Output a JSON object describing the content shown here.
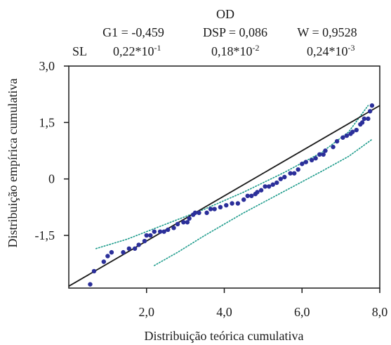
{
  "stats": {
    "title": "OD",
    "row1": [
      "G1 = -0,459",
      "DSP = 0,086",
      "W = 0,9528"
    ],
    "row2_label": "SL",
    "row2": [
      {
        "mantissa": "0,22*10",
        "exp": "-1"
      },
      {
        "mantissa": "0,18*10",
        "exp": "-2"
      },
      {
        "mantissa": "0,24*10",
        "exp": "-3"
      }
    ]
  },
  "chart_data": {
    "type": "scatter",
    "title": "",
    "xlabel": "Distribuição teórica cumulativa",
    "ylabel": "Distribuição empírica cumulativa",
    "xlim": [
      0,
      8
    ],
    "ylim": [
      -2.9,
      3.0
    ],
    "x_ticks": [
      {
        "value": 2,
        "label": "2,0"
      },
      {
        "value": 4,
        "label": "4,0"
      },
      {
        "value": 6,
        "label": "6,0"
      },
      {
        "value": 8,
        "label": "8,0"
      }
    ],
    "y_ticks": [
      {
        "value": 3.0,
        "label": "3,0"
      },
      {
        "value": 1.5,
        "label": "1,5"
      },
      {
        "value": 0,
        "label": "0"
      },
      {
        "value": -1.5,
        "label": "-1,5"
      }
    ],
    "colors": {
      "points": "#2b2f9a",
      "fit": "#1a1a1a",
      "envelope": "#1a9a8a"
    },
    "fit_line": [
      [
        0.0,
        -2.85
      ],
      [
        8.0,
        1.95
      ]
    ],
    "envelope_upper": [
      [
        0.7,
        -1.85
      ],
      [
        1.5,
        -1.6
      ],
      [
        2.5,
        -1.2
      ],
      [
        3.5,
        -0.8
      ],
      [
        4.5,
        -0.35
      ],
      [
        5.5,
        0.15
      ],
      [
        6.5,
        0.7
      ],
      [
        7.2,
        1.25
      ],
      [
        7.7,
        1.95
      ]
    ],
    "envelope_lower": [
      [
        2.2,
        -2.3
      ],
      [
        2.8,
        -1.95
      ],
      [
        3.5,
        -1.5
      ],
      [
        4.5,
        -0.9
      ],
      [
        5.5,
        -0.35
      ],
      [
        6.5,
        0.2
      ],
      [
        7.2,
        0.6
      ],
      [
        7.8,
        1.05
      ]
    ],
    "points": [
      [
        0.55,
        -2.8
      ],
      [
        0.65,
        -2.45
      ],
      [
        0.9,
        -2.2
      ],
      [
        1.0,
        -2.05
      ],
      [
        1.1,
        -1.95
      ],
      [
        1.4,
        -1.95
      ],
      [
        1.55,
        -1.85
      ],
      [
        1.7,
        -1.85
      ],
      [
        1.8,
        -1.75
      ],
      [
        1.95,
        -1.65
      ],
      [
        2.0,
        -1.5
      ],
      [
        2.1,
        -1.5
      ],
      [
        2.2,
        -1.4
      ],
      [
        2.35,
        -1.4
      ],
      [
        2.45,
        -1.4
      ],
      [
        2.55,
        -1.35
      ],
      [
        2.7,
        -1.3
      ],
      [
        2.8,
        -1.2
      ],
      [
        2.95,
        -1.15
      ],
      [
        3.05,
        -1.15
      ],
      [
        3.1,
        -1.05
      ],
      [
        3.2,
        -0.95
      ],
      [
        3.25,
        -0.9
      ],
      [
        3.35,
        -0.9
      ],
      [
        3.55,
        -0.9
      ],
      [
        3.65,
        -0.8
      ],
      [
        3.75,
        -0.8
      ],
      [
        3.9,
        -0.75
      ],
      [
        4.05,
        -0.7
      ],
      [
        4.2,
        -0.65
      ],
      [
        4.35,
        -0.65
      ],
      [
        4.5,
        -0.55
      ],
      [
        4.6,
        -0.45
      ],
      [
        4.7,
        -0.45
      ],
      [
        4.8,
        -0.4
      ],
      [
        4.85,
        -0.35
      ],
      [
        4.95,
        -0.3
      ],
      [
        5.05,
        -0.2
      ],
      [
        5.15,
        -0.2
      ],
      [
        5.25,
        -0.15
      ],
      [
        5.35,
        -0.1
      ],
      [
        5.45,
        0.0
      ],
      [
        5.55,
        0.05
      ],
      [
        5.7,
        0.15
      ],
      [
        5.8,
        0.15
      ],
      [
        5.9,
        0.25
      ],
      [
        6.0,
        0.4
      ],
      [
        6.1,
        0.45
      ],
      [
        6.25,
        0.5
      ],
      [
        6.35,
        0.55
      ],
      [
        6.45,
        0.65
      ],
      [
        6.55,
        0.65
      ],
      [
        6.6,
        0.75
      ],
      [
        6.8,
        0.85
      ],
      [
        6.9,
        1.0
      ],
      [
        7.05,
        1.1
      ],
      [
        7.15,
        1.15
      ],
      [
        7.25,
        1.2
      ],
      [
        7.3,
        1.25
      ],
      [
        7.4,
        1.3
      ],
      [
        7.5,
        1.45
      ],
      [
        7.55,
        1.5
      ],
      [
        7.6,
        1.6
      ],
      [
        7.7,
        1.6
      ],
      [
        7.75,
        1.8
      ],
      [
        7.8,
        1.95
      ]
    ]
  }
}
